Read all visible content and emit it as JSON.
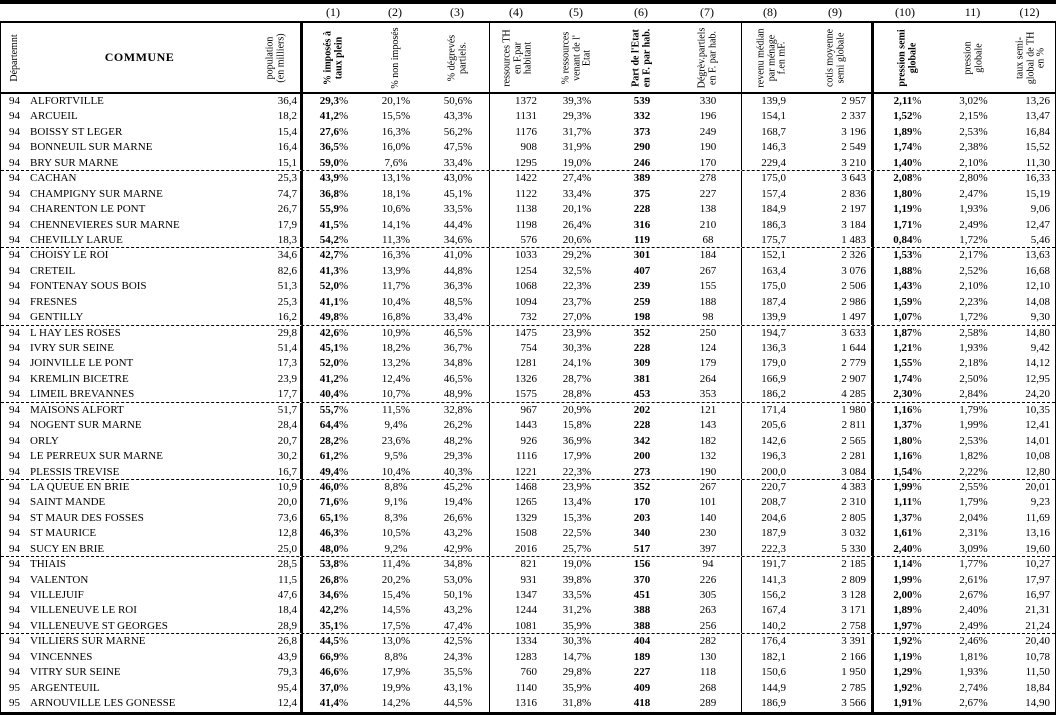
{
  "table": {
    "col_numbers": [
      "(1)",
      "(2)",
      "(3)",
      "(4)",
      "(5)",
      "(6)",
      "(7)",
      "(8)",
      "(9)",
      "(10)",
      "11)",
      "(12)"
    ],
    "header": {
      "dept": "Départemnt",
      "commune": "COMMUNE",
      "population": "population\n(en milliers)",
      "cols": [
        {
          "label": "% imposés à\ntaux plein"
        },
        {
          "label": "% non imposés"
        },
        {
          "label": "% dégrevés\npartiels."
        },
        {
          "label": "ressources TH\nen F.par\nhabitant"
        },
        {
          "label": "% ressources\nvenant de l'\nEtat"
        },
        {
          "label": "Part de l'Etat\nen F. par hab."
        },
        {
          "label": "Dégrèv.partiels\nen F. par hab."
        },
        {
          "label": "revenu médian\npar ménage\nf.en mF."
        },
        {
          "label": "cotis moyenne\nsemi globale"
        },
        {
          "label": "pression semi\nglobale"
        },
        {
          "label": "pression\nglobale"
        },
        {
          "label": "taux semi-\nglobal de TH\nen %"
        }
      ]
    },
    "dashed_after_rows": [
      5,
      10,
      15,
      20,
      25,
      30,
      35
    ],
    "rows": [
      [
        "94",
        "ALFORTVILLE",
        "36,4",
        "29,3%",
        "20,1%",
        "50,6%",
        "1372",
        "39,3%",
        "539",
        "330",
        "139,9",
        "2 957",
        "2,11%",
        "3,02%",
        "13,26"
      ],
      [
        "94",
        "ARCUEIL",
        "18,2",
        "41,2%",
        "15,5%",
        "43,3%",
        "1131",
        "29,3%",
        "332",
        "196",
        "154,1",
        "2 337",
        "1,52%",
        "2,15%",
        "13,47"
      ],
      [
        "94",
        "BOISSY ST LEGER",
        "15,4",
        "27,6%",
        "16,3%",
        "56,2%",
        "1176",
        "31,7%",
        "373",
        "249",
        "168,7",
        "3 196",
        "1,89%",
        "2,53%",
        "16,84"
      ],
      [
        "94",
        "BONNEUIL SUR MARNE",
        "16,4",
        "36,5%",
        "16,0%",
        "47,5%",
        "908",
        "31,9%",
        "290",
        "190",
        "146,3",
        "2 549",
        "1,74%",
        "2,38%",
        "15,52"
      ],
      [
        "94",
        "BRY SUR MARNE",
        "15,1",
        "59,0%",
        "7,6%",
        "33,4%",
        "1295",
        "19,0%",
        "246",
        "170",
        "229,4",
        "3 210",
        "1,40%",
        "2,10%",
        "11,30"
      ],
      [
        "94",
        "CACHAN",
        "25,3",
        "43,9%",
        "13,1%",
        "43,0%",
        "1422",
        "27,4%",
        "389",
        "278",
        "175,0",
        "3 643",
        "2,08%",
        "2,80%",
        "16,33"
      ],
      [
        "94",
        "CHAMPIGNY SUR MARNE",
        "74,7",
        "36,8%",
        "18,1%",
        "45,1%",
        "1122",
        "33,4%",
        "375",
        "227",
        "157,4",
        "2 836",
        "1,80%",
        "2,47%",
        "15,19"
      ],
      [
        "94",
        "CHARENTON LE PONT",
        "26,7",
        "55,9%",
        "10,6%",
        "33,5%",
        "1138",
        "20,1%",
        "228",
        "138",
        "184,9",
        "2 197",
        "1,19%",
        "1,93%",
        "9,06"
      ],
      [
        "94",
        "CHENNEVIERES SUR MARNE",
        "17,9",
        "41,5%",
        "14,1%",
        "44,4%",
        "1198",
        "26,4%",
        "316",
        "210",
        "186,3",
        "3 184",
        "1,71%",
        "2,49%",
        "12,47"
      ],
      [
        "94",
        "CHEVILLY LARUE",
        "18,3",
        "54,2%",
        "11,3%",
        "34,6%",
        "576",
        "20,6%",
        "119",
        "68",
        "175,7",
        "1 483",
        "0,84%",
        "1,72%",
        "5,46"
      ],
      [
        "94",
        "CHOISY LE ROI",
        "34,6",
        "42,7%",
        "16,3%",
        "41,0%",
        "1033",
        "29,2%",
        "301",
        "184",
        "152,1",
        "2 326",
        "1,53%",
        "2,17%",
        "13,63"
      ],
      [
        "94",
        "CRETEIL",
        "82,6",
        "41,3%",
        "13,9%",
        "44,8%",
        "1254",
        "32,5%",
        "407",
        "267",
        "163,4",
        "3 076",
        "1,88%",
        "2,52%",
        "16,68"
      ],
      [
        "94",
        "FONTENAY SOUS BOIS",
        "51,3",
        "52,0%",
        "11,7%",
        "36,3%",
        "1068",
        "22,3%",
        "239",
        "155",
        "175,0",
        "2 506",
        "1,43%",
        "2,10%",
        "12,10"
      ],
      [
        "94",
        "FRESNES",
        "25,3",
        "41,1%",
        "10,4%",
        "48,5%",
        "1094",
        "23,7%",
        "259",
        "188",
        "187,4",
        "2 986",
        "1,59%",
        "2,23%",
        "14,08"
      ],
      [
        "94",
        "GENTILLY",
        "16,2",
        "49,8%",
        "16,8%",
        "33,4%",
        "732",
        "27,0%",
        "198",
        "98",
        "139,9",
        "1 497",
        "1,07%",
        "1,72%",
        "9,30"
      ],
      [
        "94",
        "L HAY LES ROSES",
        "29,8",
        "42,6%",
        "10,9%",
        "46,5%",
        "1475",
        "23,9%",
        "352",
        "250",
        "194,7",
        "3 633",
        "1,87%",
        "2,58%",
        "14,80"
      ],
      [
        "94",
        "IVRY SUR SEINE",
        "51,4",
        "45,1%",
        "18,2%",
        "36,7%",
        "754",
        "30,3%",
        "228",
        "124",
        "136,3",
        "1 644",
        "1,21%",
        "1,93%",
        "9,42"
      ],
      [
        "94",
        "JOINVILLE LE PONT",
        "17,3",
        "52,0%",
        "13,2%",
        "34,8%",
        "1281",
        "24,1%",
        "309",
        "179",
        "179,0",
        "2 779",
        "1,55%",
        "2,18%",
        "14,12"
      ],
      [
        "94",
        "KREMLIN BICETRE",
        "23,9",
        "41,2%",
        "12,4%",
        "46,5%",
        "1326",
        "28,7%",
        "381",
        "264",
        "166,9",
        "2 907",
        "1,74%",
        "2,50%",
        "12,95"
      ],
      [
        "94",
        "LIMEIL BREVANNES",
        "17,7",
        "40,4%",
        "10,7%",
        "48,9%",
        "1575",
        "28,8%",
        "453",
        "353",
        "186,2",
        "4 285",
        "2,30%",
        "2,84%",
        "24,20"
      ],
      [
        "94",
        "MAISONS ALFORT",
        "51,7",
        "55,7%",
        "11,5%",
        "32,8%",
        "967",
        "20,9%",
        "202",
        "121",
        "171,4",
        "1 980",
        "1,16%",
        "1,79%",
        "10,35"
      ],
      [
        "94",
        "NOGENT SUR MARNE",
        "28,4",
        "64,4%",
        "9,4%",
        "26,2%",
        "1443",
        "15,8%",
        "228",
        "143",
        "205,6",
        "2 811",
        "1,37%",
        "1,99%",
        "12,41"
      ],
      [
        "94",
        "ORLY",
        "20,7",
        "28,2%",
        "23,6%",
        "48,2%",
        "926",
        "36,9%",
        "342",
        "182",
        "142,6",
        "2 565",
        "1,80%",
        "2,53%",
        "14,01"
      ],
      [
        "94",
        "LE PERREUX SUR MARNE",
        "30,2",
        "61,2%",
        "9,5%",
        "29,3%",
        "1116",
        "17,9%",
        "200",
        "132",
        "196,3",
        "2 281",
        "1,16%",
        "1,82%",
        "10,08"
      ],
      [
        "94",
        "PLESSIS TREVISE",
        "16,7",
        "49,4%",
        "10,4%",
        "40,3%",
        "1221",
        "22,3%",
        "273",
        "190",
        "200,0",
        "3 084",
        "1,54%",
        "2,22%",
        "12,80"
      ],
      [
        "94",
        "LA QUEUE EN BRIE",
        "10,9",
        "46,0%",
        "8,8%",
        "45,2%",
        "1468",
        "23,9%",
        "352",
        "267",
        "220,7",
        "4 383",
        "1,99%",
        "2,55%",
        "20,01"
      ],
      [
        "94",
        "SAINT MANDE",
        "20,0",
        "71,6%",
        "9,1%",
        "19,4%",
        "1265",
        "13,4%",
        "170",
        "101",
        "208,7",
        "2 310",
        "1,11%",
        "1,79%",
        "9,23"
      ],
      [
        "94",
        "ST MAUR DES FOSSES",
        "73,6",
        "65,1%",
        "8,3%",
        "26,6%",
        "1329",
        "15,3%",
        "203",
        "140",
        "204,6",
        "2 805",
        "1,37%",
        "2,04%",
        "11,69"
      ],
      [
        "94",
        "ST MAURICE",
        "12,8",
        "46,3%",
        "10,5%",
        "43,2%",
        "1508",
        "22,5%",
        "340",
        "230",
        "187,9",
        "3 032",
        "1,61%",
        "2,31%",
        "13,16"
      ],
      [
        "94",
        "SUCY EN BRIE",
        "25,0",
        "48,0%",
        "9,2%",
        "42,9%",
        "2016",
        "25,7%",
        "517",
        "397",
        "222,3",
        "5 330",
        "2,40%",
        "3,09%",
        "19,60"
      ],
      [
        "94",
        "THIAIS",
        "28,5",
        "53,8%",
        "11,4%",
        "34,8%",
        "821",
        "19,0%",
        "156",
        "94",
        "191,7",
        "2 185",
        "1,14%",
        "1,77%",
        "10,27"
      ],
      [
        "94",
        "VALENTON",
        "11,5",
        "26,8%",
        "20,2%",
        "53,0%",
        "931",
        "39,8%",
        "370",
        "226",
        "141,3",
        "2 809",
        "1,99%",
        "2,61%",
        "17,97"
      ],
      [
        "94",
        "VILLEJUIF",
        "47,6",
        "34,6%",
        "15,4%",
        "50,1%",
        "1347",
        "33,5%",
        "451",
        "305",
        "156,2",
        "3 128",
        "2,00%",
        "2,67%",
        "16,97"
      ],
      [
        "94",
        "VILLENEUVE LE ROI",
        "18,4",
        "42,2%",
        "14,5%",
        "43,2%",
        "1244",
        "31,2%",
        "388",
        "263",
        "167,4",
        "3 171",
        "1,89%",
        "2,40%",
        "21,31"
      ],
      [
        "94",
        "VILLENEUVE ST GEORGES",
        "28,9",
        "35,1%",
        "17,5%",
        "47,4%",
        "1081",
        "35,9%",
        "388",
        "256",
        "140,2",
        "2 758",
        "1,97%",
        "2,49%",
        "21,24"
      ],
      [
        "94",
        "VILLIERS SUR MARNE",
        "26,8",
        "44,5%",
        "13,0%",
        "42,5%",
        "1334",
        "30,3%",
        "404",
        "282",
        "176,4",
        "3 391",
        "1,92%",
        "2,46%",
        "20,40"
      ],
      [
        "94",
        "VINCENNES",
        "43,9",
        "66,9%",
        "8,8%",
        "24,3%",
        "1283",
        "14,7%",
        "189",
        "130",
        "182,1",
        "2 166",
        "1,19%",
        "1,81%",
        "10,78"
      ],
      [
        "94",
        "VITRY SUR SEINE",
        "79,3",
        "46,6%",
        "17,9%",
        "35,5%",
        "760",
        "29,8%",
        "227",
        "118",
        "150,6",
        "1 950",
        "1,29%",
        "1,93%",
        "11,50"
      ],
      [
        "95",
        "ARGENTEUIL",
        "95,4",
        "37,0%",
        "19,9%",
        "43,1%",
        "1140",
        "35,9%",
        "409",
        "268",
        "144,9",
        "2 785",
        "1,92%",
        "2,74%",
        "18,84"
      ],
      [
        "95",
        "ARNOUVILLE LES GONESSE",
        "12,4",
        "41,4%",
        "14,2%",
        "44,5%",
        "1316",
        "31,8%",
        "418",
        "289",
        "186,9",
        "3 566",
        "1,91%",
        "2,67%",
        "14,90"
      ]
    ]
  }
}
